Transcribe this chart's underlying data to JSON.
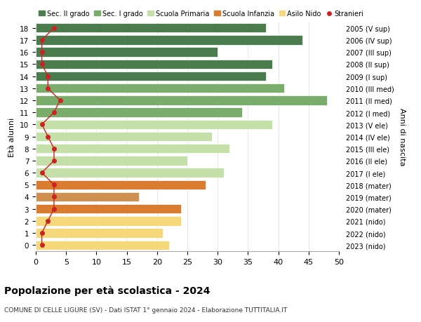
{
  "ages": [
    18,
    17,
    16,
    15,
    14,
    13,
    12,
    11,
    10,
    9,
    8,
    7,
    6,
    5,
    4,
    3,
    2,
    1,
    0
  ],
  "values": [
    38,
    44,
    30,
    39,
    38,
    41,
    48,
    34,
    39,
    29,
    32,
    25,
    31,
    28,
    17,
    24,
    24,
    21,
    22
  ],
  "stranieri": [
    3,
    1,
    1,
    1,
    2,
    2,
    4,
    3,
    1,
    2,
    3,
    3,
    1,
    3,
    3,
    3,
    2,
    1,
    1
  ],
  "right_labels": [
    "2005 (V sup)",
    "2006 (IV sup)",
    "2007 (III sup)",
    "2008 (II sup)",
    "2009 (I sup)",
    "2010 (III med)",
    "2011 (II med)",
    "2012 (I med)",
    "2013 (V ele)",
    "2014 (IV ele)",
    "2015 (III ele)",
    "2016 (II ele)",
    "2017 (I ele)",
    "2018 (mater)",
    "2019 (mater)",
    "2020 (mater)",
    "2021 (nido)",
    "2022 (nido)",
    "2023 (nido)"
  ],
  "bar_colors": [
    "#4a7c4e",
    "#4a7c4e",
    "#4a7c4e",
    "#4a7c4e",
    "#4a7c4e",
    "#7aad6b",
    "#7aad6b",
    "#7aad6b",
    "#c5dfa8",
    "#c5dfa8",
    "#c5dfa8",
    "#c5dfa8",
    "#c5dfa8",
    "#d97c30",
    "#d09050",
    "#d97c30",
    "#f5d87a",
    "#f5d87a",
    "#f5d87a"
  ],
  "legend_labels": [
    "Sec. II grado",
    "Sec. I grado",
    "Scuola Primaria",
    "Scuola Infanzia",
    "Asilo Nido",
    "Stranieri"
  ],
  "legend_colors": [
    "#4a7c4e",
    "#7aad6b",
    "#c5dfa8",
    "#d97c30",
    "#f5d87a",
    "#cc2222"
  ],
  "ylabel": "Età alunni",
  "right_ylabel": "Anni di nascita",
  "title": "Popolazione per età scolastica - 2024",
  "subtitle": "COMUNE DI CELLE LIGURE (SV) - Dati ISTAT 1° gennaio 2024 - Elaborazione TUTTITALIA.IT",
  "xlim": [
    0,
    50
  ],
  "stranieri_color": "#cc2222",
  "bg_color": "#ffffff",
  "grid_color": "#dddddd"
}
